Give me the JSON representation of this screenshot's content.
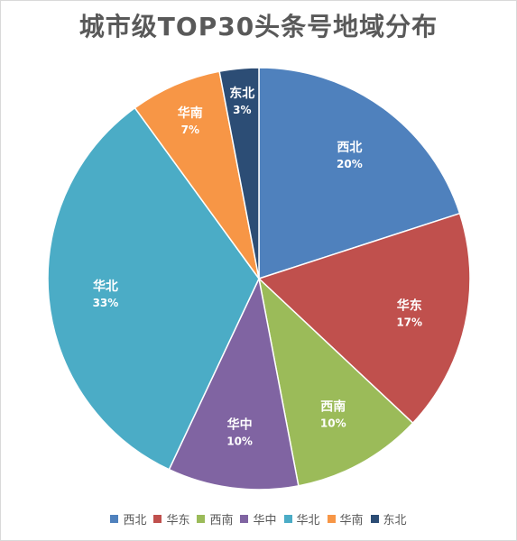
{
  "chart_data": {
    "type": "pie",
    "title": "城市级TOP30头条号地域分布",
    "slices": [
      {
        "name": "西北",
        "value": 20,
        "label": "20%",
        "color": "#4F81BD"
      },
      {
        "name": "华东",
        "value": 17,
        "label": "17%",
        "color": "#C0504D"
      },
      {
        "name": "西南",
        "value": 10,
        "label": "10%",
        "color": "#9BBB59"
      },
      {
        "name": "华中",
        "value": 10,
        "label": "10%",
        "color": "#8064A2"
      },
      {
        "name": "华北",
        "value": 33,
        "label": "33%",
        "color": "#4BACC6"
      },
      {
        "name": "华南",
        "value": 7,
        "label": "7%",
        "color": "#F79646"
      },
      {
        "name": "东北",
        "value": 3,
        "label": "3%",
        "color": "#2C4D75"
      }
    ],
    "legend_position": "bottom"
  }
}
